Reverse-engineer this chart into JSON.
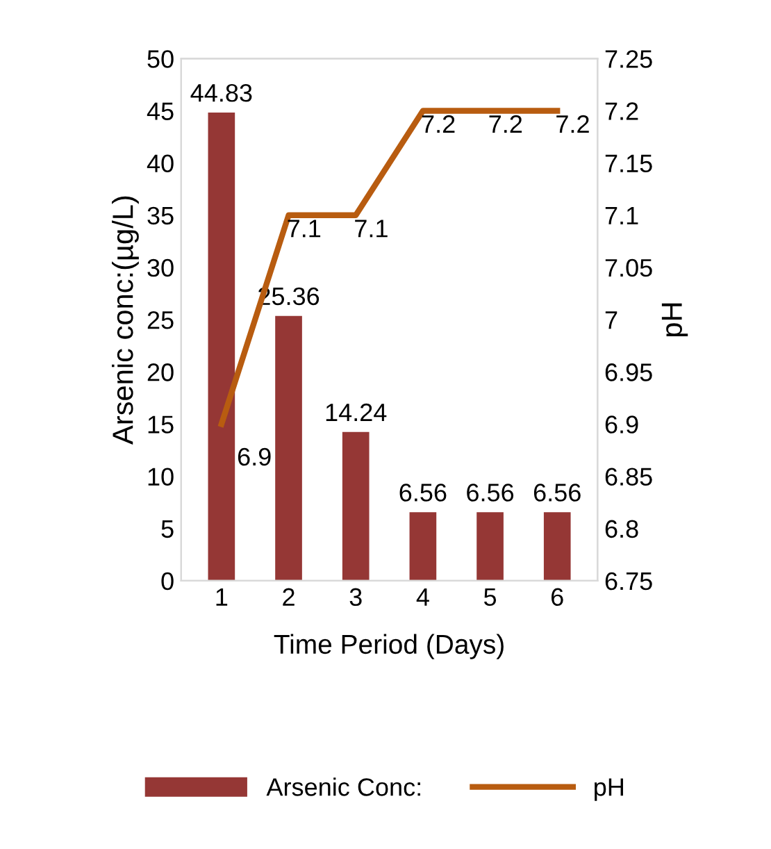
{
  "chart_data": {
    "type": "bar",
    "xlabel": "Time Period (Days)",
    "ylabel": "Arsenic conc:(µg/L)",
    "y2label": "pH",
    "categories": [
      "1",
      "2",
      "3",
      "4",
      "5",
      "6"
    ],
    "series": [
      {
        "name": "Arsenic Conc:",
        "color": "#953735",
        "values": [
          44.83,
          25.36,
          14.24,
          6.56,
          6.56,
          6.56
        ]
      },
      {
        "name": "pH",
        "type": "line",
        "axis": "y2",
        "color": "#b85c10",
        "values": [
          6.9,
          7.1,
          7.1,
          7.2,
          7.2,
          7.2
        ]
      }
    ],
    "ylim": [
      0,
      50
    ],
    "yticks": [
      0,
      5,
      10,
      15,
      20,
      25,
      30,
      35,
      40,
      45,
      50
    ],
    "y2lim": [
      6.75,
      7.25
    ],
    "y2ticks": [
      {
        "value": 6.75,
        "label": "6.75"
      },
      {
        "value": 6.8,
        "label": "6.8"
      },
      {
        "value": 6.85,
        "label": "6.85"
      },
      {
        "value": 6.9,
        "label": "6.9"
      },
      {
        "value": 6.95,
        "label": "6.95"
      },
      {
        "value": 7.0,
        "label": "7"
      },
      {
        "value": 7.05,
        "label": "7.05"
      },
      {
        "value": 7.1,
        "label": "7.1"
      },
      {
        "value": 7.15,
        "label": "7.15"
      },
      {
        "value": 7.2,
        "label": "7.2"
      },
      {
        "value": 7.25,
        "label": "7.25"
      }
    ],
    "data_labels": true,
    "legend": "bottom",
    "grid": false,
    "marker": "none",
    "line_style": "solid"
  }
}
